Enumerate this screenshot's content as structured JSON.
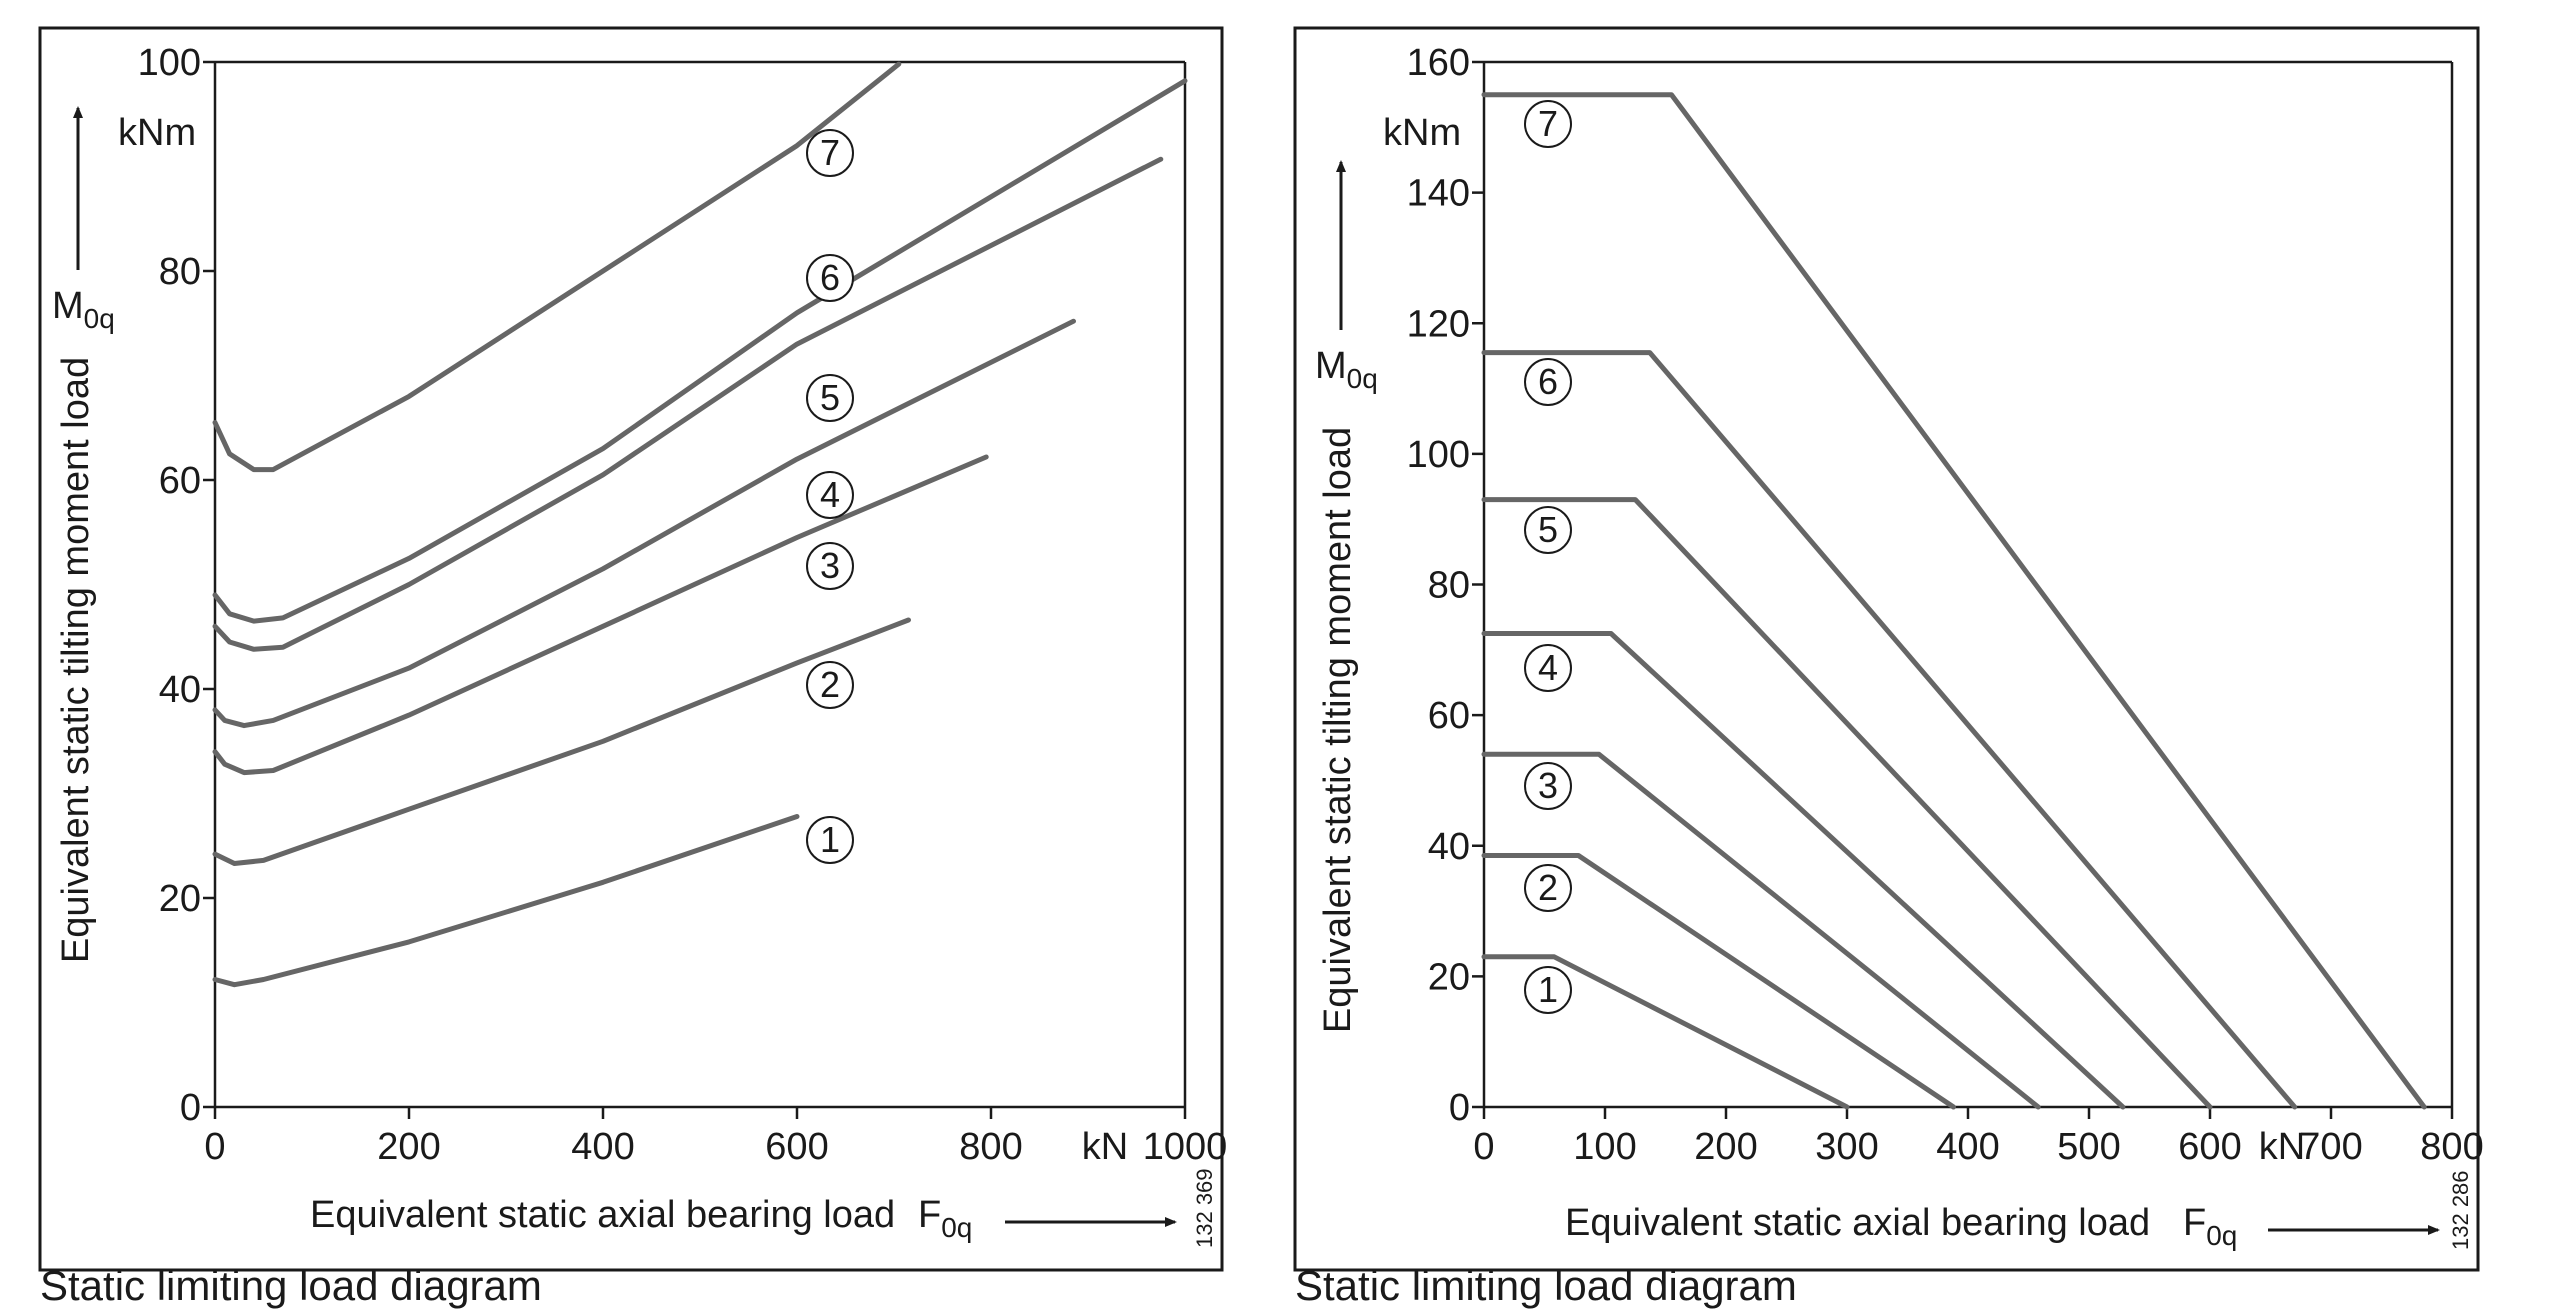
{
  "chart_data": [
    {
      "type": "line",
      "caption": "Static limiting load diagram",
      "xlabel": "Equivalent static axial bearing load",
      "xsymbol": "F",
      "xsymbol_sub": "0q",
      "ylabel": "Equivalent static tilting moment load",
      "ysymbol": "M",
      "ysymbol_sub": "0q",
      "yunit": "kNm",
      "xunit": "kN",
      "drawing_code": "132 369",
      "xlim": [
        0,
        1000
      ],
      "ylim": [
        0,
        100
      ],
      "xticks": [
        0,
        200,
        400,
        600,
        800,
        1000
      ],
      "yticks": [
        0,
        20,
        40,
        60,
        80,
        100
      ],
      "grid": false,
      "series": [
        {
          "label": "1",
          "points": [
            [
              0,
              12.2
            ],
            [
              20,
              11.7
            ],
            [
              50,
              12.2
            ],
            [
              200,
              15.8
            ],
            [
              400,
              21.5
            ],
            [
              600,
              27.8
            ]
          ]
        },
        {
          "label": "2",
          "points": [
            [
              0,
              24.2
            ],
            [
              20,
              23.3
            ],
            [
              50,
              23.6
            ],
            [
              200,
              28.5
            ],
            [
              400,
              35.0
            ],
            [
              600,
              42.5
            ],
            [
              715,
              46.6
            ]
          ]
        },
        {
          "label": "3",
          "points": [
            [
              0,
              34.0
            ],
            [
              10,
              32.8
            ],
            [
              30,
              32.0
            ],
            [
              60,
              32.2
            ],
            [
              200,
              37.5
            ],
            [
              400,
              46.0
            ],
            [
              600,
              54.5
            ],
            [
              795,
              62.2
            ]
          ]
        },
        {
          "label": "4",
          "points": [
            [
              0,
              38.0
            ],
            [
              10,
              37.0
            ],
            [
              30,
              36.5
            ],
            [
              60,
              37.0
            ],
            [
              200,
              42.0
            ],
            [
              400,
              51.5
            ],
            [
              600,
              62.0
            ],
            [
              885,
              75.2
            ]
          ]
        },
        {
          "label": "5",
          "points": [
            [
              0,
              46.0
            ],
            [
              15,
              44.5
            ],
            [
              40,
              43.8
            ],
            [
              70,
              44.0
            ],
            [
              200,
              50.0
            ],
            [
              400,
              60.5
            ],
            [
              600,
              73.0
            ],
            [
              975,
              90.7
            ]
          ]
        },
        {
          "label": "6",
          "points": [
            [
              0,
              49.0
            ],
            [
              15,
              47.2
            ],
            [
              40,
              46.5
            ],
            [
              70,
              46.8
            ],
            [
              200,
              52.5
            ],
            [
              400,
              63.0
            ],
            [
              600,
              76.0
            ],
            [
              1000,
              98.2
            ]
          ]
        },
        {
          "label": "7",
          "points": [
            [
              0,
              65.5
            ],
            [
              15,
              62.5
            ],
            [
              40,
              61.0
            ],
            [
              60,
              61.0
            ],
            [
              200,
              68.0
            ],
            [
              400,
              80.0
            ],
            [
              600,
              92.0
            ],
            [
              705,
              99.8
            ]
          ]
        }
      ]
    },
    {
      "type": "line",
      "caption": "Static limiting load diagram",
      "xlabel": "Equivalent static axial bearing load",
      "xsymbol": "F",
      "xsymbol_sub": "0q",
      "ylabel": "Equivalent static tilting moment load",
      "ysymbol": "M",
      "ysymbol_sub": "0q",
      "yunit": "kNm",
      "xunit": "kN",
      "drawing_code": "132 286",
      "xlim": [
        0,
        800
      ],
      "ylim": [
        0,
        160
      ],
      "xticks": [
        0,
        100,
        200,
        300,
        400,
        500,
        600,
        700,
        800
      ],
      "yticks": [
        0,
        20,
        40,
        60,
        80,
        100,
        120,
        140,
        160
      ],
      "grid": false,
      "series": [
        {
          "label": "1",
          "points": [
            [
              0,
              23
            ],
            [
              58,
              23
            ],
            [
              300,
              0
            ]
          ]
        },
        {
          "label": "2",
          "points": [
            [
              0,
              38.5
            ],
            [
              78,
              38.5
            ],
            [
              388,
              0
            ]
          ]
        },
        {
          "label": "3",
          "points": [
            [
              0,
              54
            ],
            [
              95,
              54
            ],
            [
              458,
              0
            ]
          ]
        },
        {
          "label": "4",
          "points": [
            [
              0,
              72.5
            ],
            [
              105,
              72.5
            ],
            [
              528,
              0
            ]
          ]
        },
        {
          "label": "5",
          "points": [
            [
              0,
              93
            ],
            [
              125,
              93
            ],
            [
              600,
              0
            ]
          ]
        },
        {
          "label": "6",
          "points": [
            [
              0,
              115.5
            ],
            [
              137,
              115.5
            ],
            [
              670,
              0
            ]
          ]
        },
        {
          "label": "7",
          "points": [
            [
              0,
              155
            ],
            [
              155,
              155
            ],
            [
              777,
              0
            ]
          ]
        }
      ]
    }
  ]
}
